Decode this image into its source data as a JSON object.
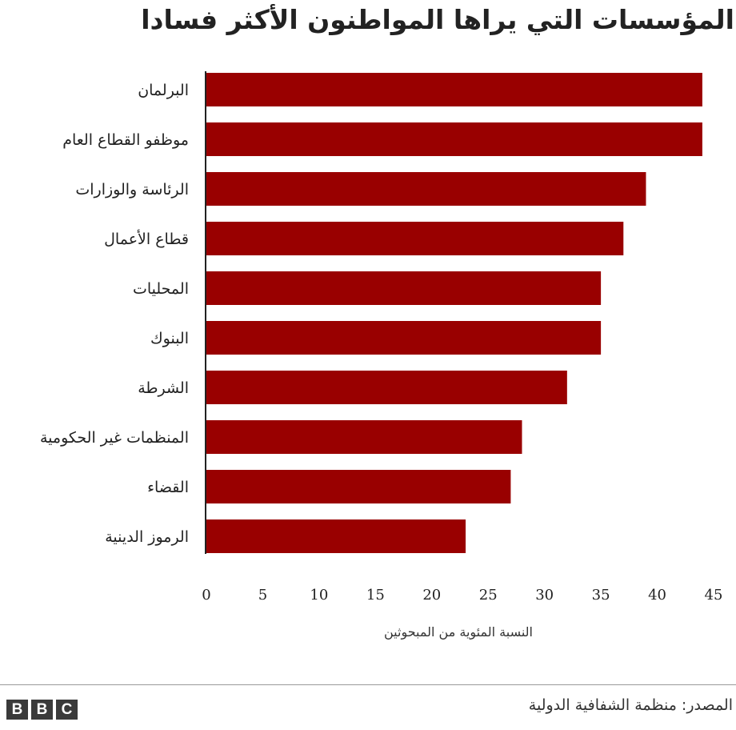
{
  "chart_data": {
    "type": "bar",
    "orientation": "horizontal",
    "title": "المؤسسات التي يراها المواطنون الأكثر فسادا",
    "categories": [
      "البرلمان",
      "موظفو القطاع العام",
      "الرئاسة والوزارات",
      "قطاع الأعمال",
      "المحليات",
      "البنوك",
      "الشرطة",
      "المنظمات غير الحكومية",
      "القضاء",
      "الرموز الدينية"
    ],
    "values": [
      44,
      44,
      39,
      37,
      35,
      35,
      32,
      28,
      27,
      23
    ],
    "xlabel": "النسبة المئوية من المبحوثين",
    "ylabel": "",
    "xlim": [
      0,
      45
    ],
    "xticks": [
      0,
      5,
      10,
      15,
      20,
      25,
      30,
      35,
      40,
      45
    ],
    "grid": false,
    "bar_color": "#990000"
  },
  "footer": {
    "source": "المصدر: منظمة الشفافية الدولية",
    "logo_letters": [
      "B",
      "B",
      "C"
    ]
  }
}
